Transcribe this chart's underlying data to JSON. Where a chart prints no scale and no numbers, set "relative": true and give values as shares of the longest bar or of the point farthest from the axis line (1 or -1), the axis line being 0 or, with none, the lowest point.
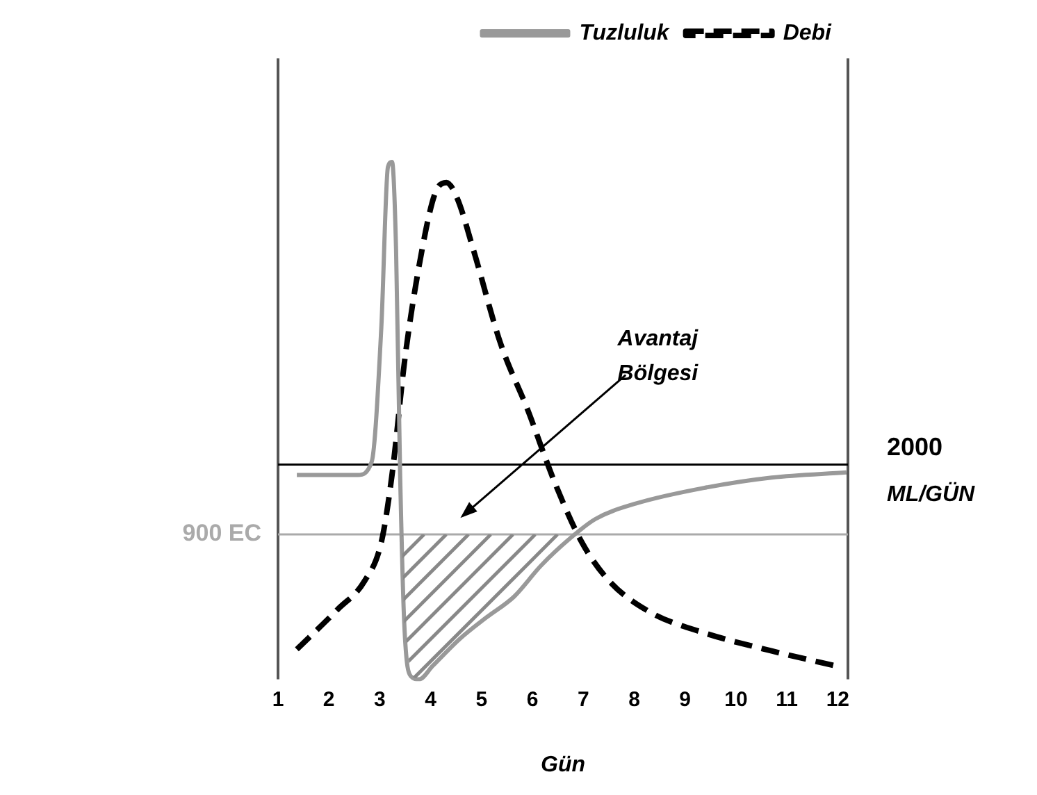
{
  "chart_data": {
    "type": "line",
    "relative": true,
    "xlabel": "Gün",
    "xlim": [
      1,
      12.2
    ],
    "xticks": [
      1,
      2,
      3,
      4,
      5,
      6,
      7,
      8,
      9,
      10,
      11,
      12
    ],
    "grid": false,
    "legend": "top right",
    "marker": "none",
    "series": [
      {
        "name": "Tuzluluk",
        "color": "#999999",
        "line_style": "solid",
        "x": [
          1.37,
          2.57,
          2.84,
          3.03,
          3.16,
          3.24,
          3.32,
          3.4,
          3.48,
          3.61,
          3.77,
          4.04,
          4.57,
          5.1,
          5.64,
          6.17,
          6.71,
          7.24,
          8.04,
          9.37,
          10.7,
          12.17
        ],
        "values": [
          0.395,
          0.395,
          0.42,
          0.68,
          0.99,
          1,
          0.83,
          0.395,
          0.11,
          0.006,
          0,
          0.026,
          0.078,
          0.12,
          0.16,
          0.22,
          0.27,
          0.31,
          0.34,
          0.37,
          0.39,
          0.4
        ]
      },
      {
        "name": "Debi",
        "color": "#000000",
        "line_style": "dashed",
        "x": [
          1.37,
          2.17,
          2.7,
          3.03,
          3.24,
          3.5,
          3.83,
          4.09,
          4.31,
          4.52,
          4.84,
          5.37,
          5.91,
          6.44,
          6.97,
          7.51,
          8.31,
          9.37,
          10.7,
          11.96
        ],
        "values": [
          0.058,
          0.135,
          0.19,
          0.265,
          0.395,
          0.625,
          0.83,
          0.94,
          0.96,
          0.93,
          0.83,
          0.65,
          0.52,
          0.38,
          0.265,
          0.19,
          0.13,
          0.09,
          0.055,
          0.026
        ]
      }
    ],
    "ref_lines": [
      {
        "axis": "y",
        "value": 0.415,
        "label": "2000 ML/GÜN",
        "color": "#000000"
      },
      {
        "axis": "y",
        "value": 0.28,
        "label": "900 EC",
        "color": "#aaaaaa"
      }
    ],
    "annotations": [
      "Avantaj Bölgesi"
    ]
  }
}
